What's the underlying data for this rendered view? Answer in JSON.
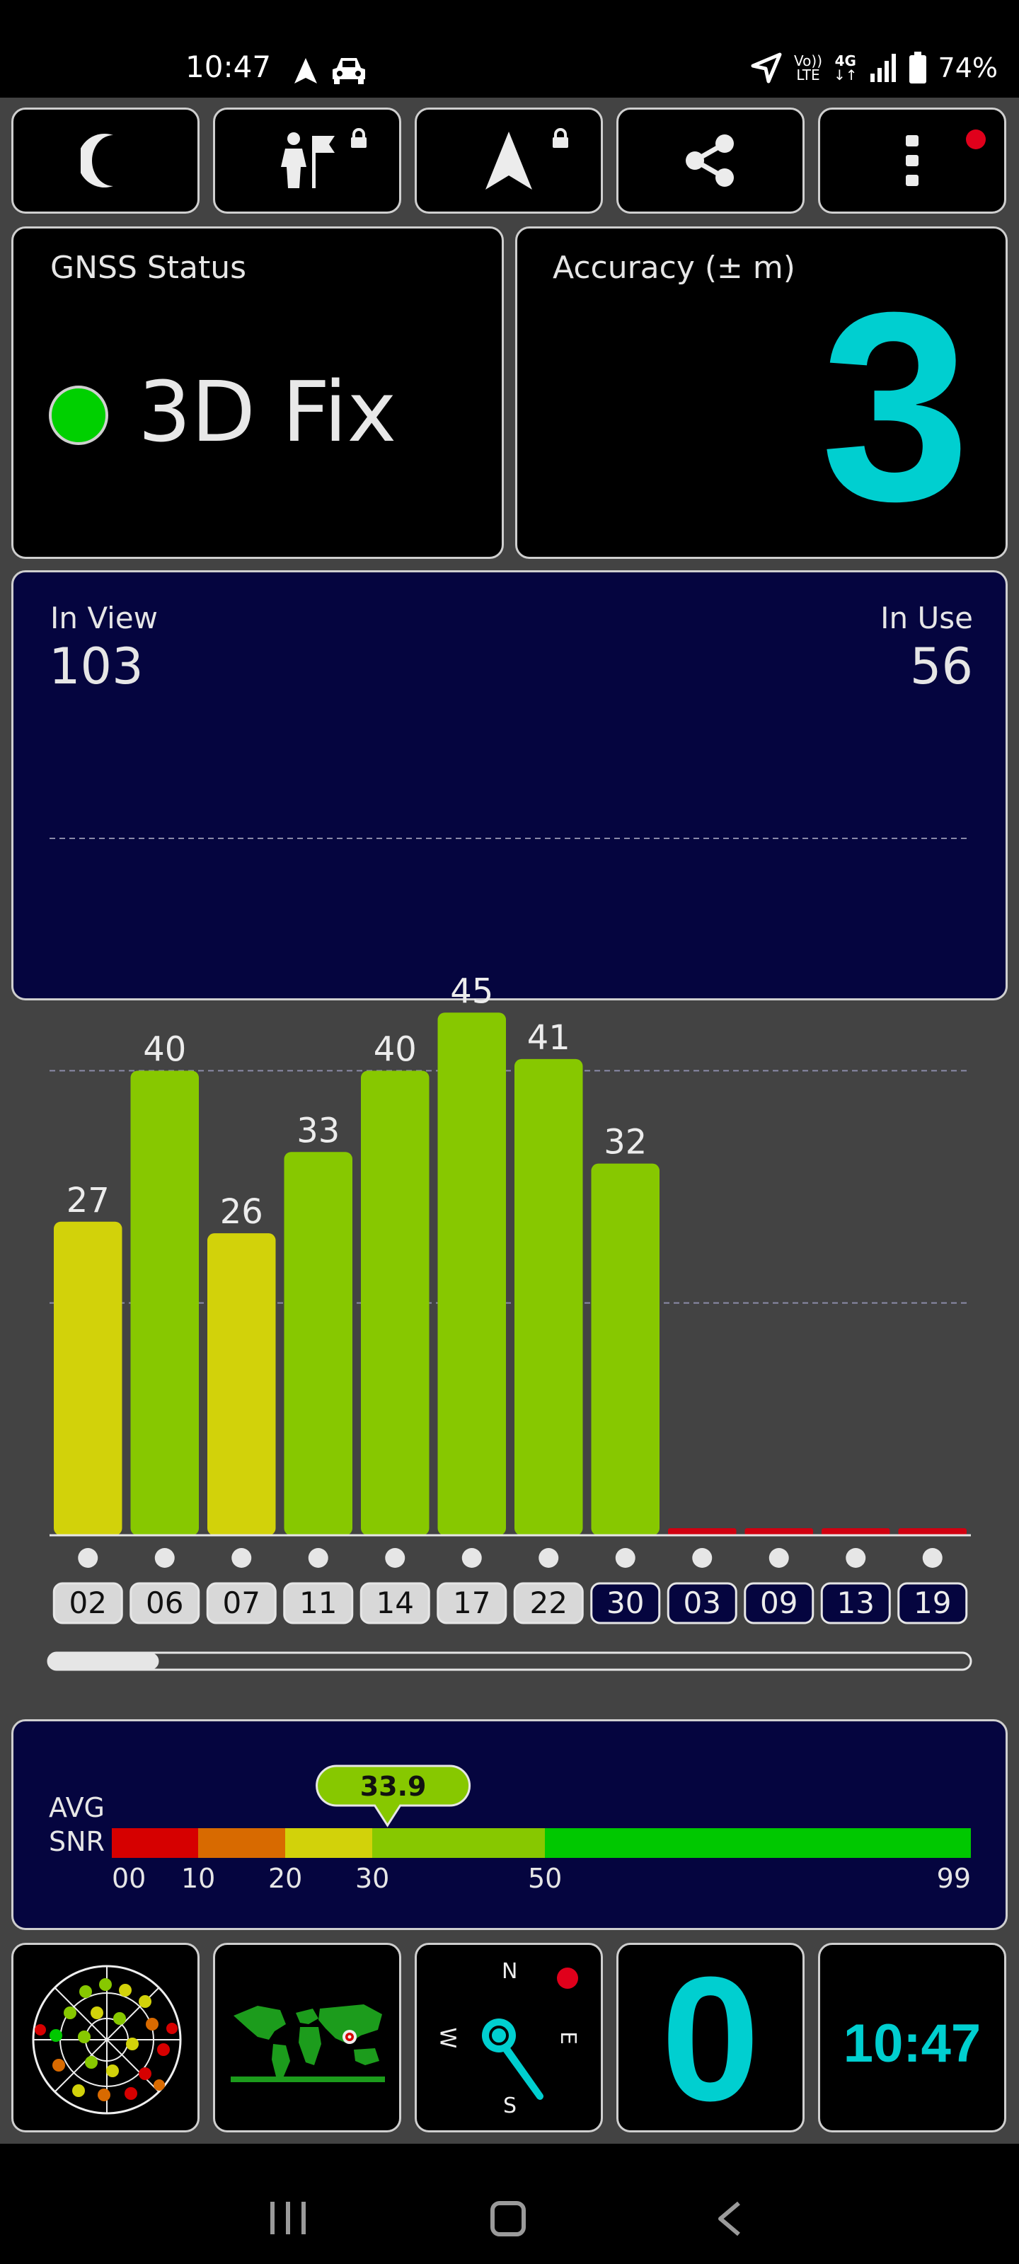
{
  "status_bar": {
    "time": "10:47",
    "volte_top": "Vo))",
    "volte_bottom": "LTE",
    "network": "4G",
    "network_arrows": "↓↑",
    "battery": "74%"
  },
  "toolbar": {
    "icons": [
      "moon-icon",
      "person-flag-icon",
      "navigation-arrow-icon",
      "share-icon",
      "more-vert-icon"
    ]
  },
  "gnss": {
    "title": "GNSS Status",
    "fix": "3D Fix",
    "fix_color": "#00d000"
  },
  "accuracy": {
    "title": "Accuracy (± m)",
    "value": "3",
    "value_color": "#00cfd0"
  },
  "satellites": {
    "in_view_label": "In View",
    "in_view": "103",
    "in_use_label": "In Use",
    "in_use": "56"
  },
  "chart_data": {
    "type": "bar",
    "categories": [
      "02",
      "06",
      "07",
      "11",
      "14",
      "17",
      "22",
      "30",
      "03",
      "09",
      "13",
      "19"
    ],
    "values": [
      27,
      40,
      26,
      33,
      40,
      45,
      41,
      32,
      0,
      0,
      0,
      0
    ],
    "labels": [
      "27",
      "40",
      "26",
      "33",
      "40",
      "45",
      "41",
      "32",
      "",
      "",
      "",
      ""
    ],
    "ylim": [
      0,
      60
    ],
    "gridlines": [
      20,
      40,
      60
    ],
    "used_in_fix": [
      true,
      true,
      true,
      true,
      true,
      true,
      true,
      false,
      false,
      false,
      false,
      false
    ],
    "colors": {
      "yellow": "#d2d20a",
      "green": "#87c800",
      "red": "#d00010"
    },
    "scroll_fraction": 0.12
  },
  "snr": {
    "label_top": "AVG",
    "label_bottom": "SNR",
    "average": "33.9",
    "average_value": 33.9,
    "ticks": [
      "00",
      "10",
      "20",
      "30",
      "50",
      "99"
    ],
    "segments": [
      {
        "from": 0,
        "to": 10,
        "color": "#d60000"
      },
      {
        "from": 10,
        "to": 20,
        "color": "#d86a00"
      },
      {
        "from": 20,
        "to": 30,
        "color": "#d2d20a"
      },
      {
        "from": 30,
        "to": 50,
        "color": "#87c800"
      },
      {
        "from": 50,
        "to": 99,
        "color": "#00c800"
      }
    ]
  },
  "bottom_tiles": {
    "compass": {
      "n": "N",
      "s": "S",
      "e": "E",
      "w": "W"
    },
    "speed": "0",
    "clock": "10:47",
    "accent": "#00cfd0"
  }
}
